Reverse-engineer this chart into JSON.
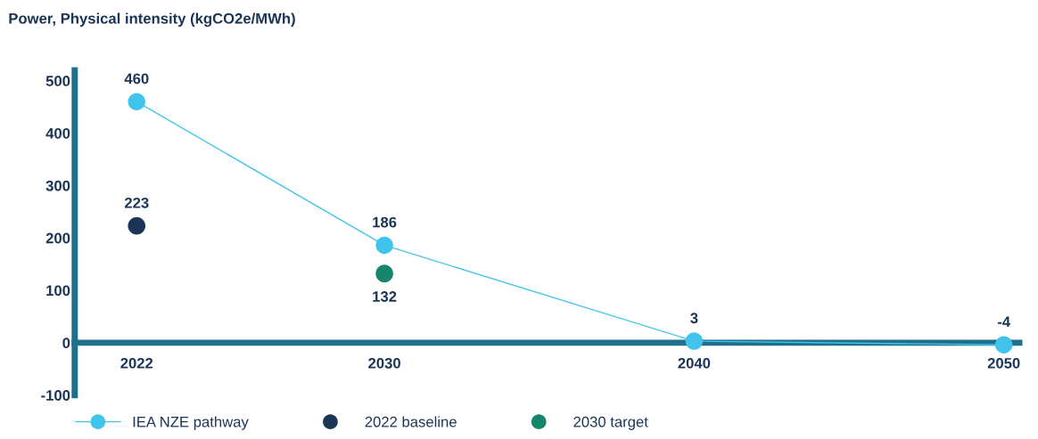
{
  "chart_data": {
    "type": "line",
    "title": "Power, Physical intensity (kgCO2e/MWh)",
    "x": [
      2022,
      2030,
      2040,
      2050
    ],
    "series": [
      {
        "name": "IEA NZE pathway",
        "color": "#40c4ec",
        "marker": "circle",
        "values": [
          460,
          186,
          3,
          -4
        ]
      },
      {
        "name": "2022 baseline",
        "type": "scatter",
        "color": "#1b3557",
        "x": [
          2022
        ],
        "values": [
          223
        ]
      },
      {
        "name": "2030 target",
        "type": "scatter",
        "color": "#16856b",
        "x": [
          2030
        ],
        "values": [
          132
        ]
      }
    ],
    "xlim": [
      2020,
      2050.5
    ],
    "xticks": [
      2022,
      2030,
      2040,
      2050
    ],
    "ylim": [
      -100,
      520
    ],
    "yticks": [
      -100,
      0,
      100,
      200,
      300,
      400,
      500
    ],
    "data_labels": true,
    "grid": false,
    "legend": "bottom"
  }
}
